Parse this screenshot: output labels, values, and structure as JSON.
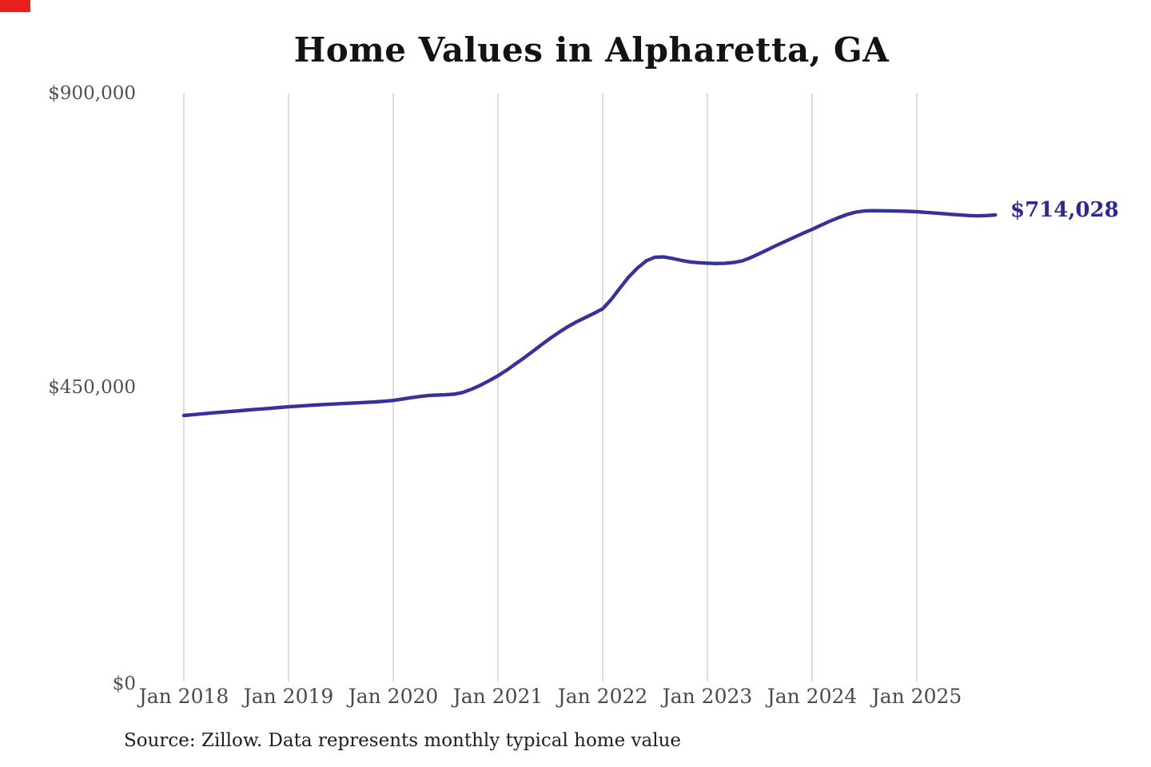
{
  "window": {
    "background_color": "#ffffff",
    "recording_marker_color": "#ea201c"
  },
  "chart_data": {
    "type": "line",
    "title": "Home Values in Alpharetta, GA",
    "source_note": "Source: Zillow. Data represents monthly typical home value",
    "end_label": "$714,028",
    "latest_value": 714028,
    "x_tick_labels": [
      "Jan 2018",
      "Jan 2019",
      "Jan 2020",
      "Jan 2021",
      "Jan 2022",
      "Jan 2023",
      "Jan 2024",
      "Jan 2025"
    ],
    "y_tick_labels": [
      "$900,000",
      "$450,000",
      "$0"
    ],
    "ylim": [
      0,
      900000
    ],
    "grid": "vertical",
    "legend_position": "none",
    "grid_color": "#cccccc",
    "end_label_color": "#2c2a91",
    "series": [
      {
        "name": "Monthly typical home value",
        "color": "#37329a",
        "x_interval": "monthly",
        "x_start": "Jan 2018",
        "x_end": "Oct 2025",
        "values": [
          407200,
          408300,
          409500,
          410700,
          411900,
          413000,
          414100,
          415200,
          416200,
          417200,
          418300,
          419400,
          420500,
          421400,
          422300,
          423100,
          423900,
          424600,
          425300,
          425900,
          426500,
          427200,
          428000,
          429000,
          430200,
          432100,
          434300,
          436200,
          437600,
          438400,
          438900,
          439800,
          442500,
          447500,
          453500,
          460500,
          468000,
          476500,
          486000,
          495500,
          505500,
          515500,
          525500,
          534500,
          543000,
          550500,
          557000,
          563500,
          570500,
          585000,
          602500,
          619500,
          633000,
          644000,
          649500,
          649800,
          647500,
          644500,
          642200,
          641000,
          640300,
          639800,
          640000,
          641200,
          643800,
          649000,
          655200,
          661500,
          668000,
          674200,
          680200,
          686200,
          692000,
          698200,
          704300,
          709800,
          714800,
          718400,
          720300,
          720600,
          720500,
          720300,
          720000,
          719600,
          719000,
          718100,
          717100,
          716100,
          715000,
          714000,
          713100,
          712700,
          713100,
          714028
        ]
      }
    ]
  }
}
